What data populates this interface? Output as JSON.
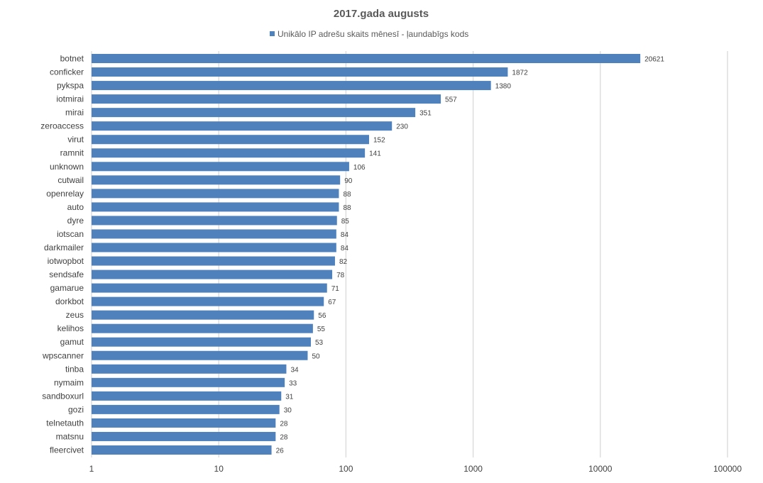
{
  "chart_data": {
    "type": "bar",
    "orientation": "horizontal",
    "title": "2017.gada augusts",
    "x_scale": "log",
    "xlim": [
      1,
      100000
    ],
    "x_ticks": [
      "1",
      "10",
      "100",
      "1000",
      "10000",
      "100000"
    ],
    "x_tick_values": [
      1,
      10,
      100,
      1000,
      10000,
      100000
    ],
    "grid": "vertical",
    "legend_position": "top",
    "series": [
      {
        "name": "Unikālo IP adrešu skaits mēnesī -  ļaundabīgs kods",
        "color": "#4f81bd",
        "values": [
          20621,
          1872,
          1380,
          557,
          351,
          230,
          152,
          141,
          106,
          90,
          88,
          88,
          85,
          84,
          84,
          82,
          78,
          71,
          67,
          56,
          55,
          53,
          50,
          34,
          33,
          31,
          30,
          28,
          28,
          26
        ]
      }
    ],
    "categories": [
      "botnet",
      "conficker",
      "pykspa",
      "iotmirai",
      "mirai",
      "zeroaccess",
      "virut",
      "ramnit",
      "unknown",
      "cutwail",
      "openrelay",
      "auto",
      "dyre",
      "iotscan",
      "darkmailer",
      "iotwopbot",
      "sendsafe",
      "gamarue",
      "dorkbot",
      "zeus",
      "kelihos",
      "gamut",
      "wpscanner",
      "tinba",
      "nymaim",
      "sandboxurl",
      "gozi",
      "telnetauth",
      "matsnu",
      "fleercivet"
    ]
  }
}
